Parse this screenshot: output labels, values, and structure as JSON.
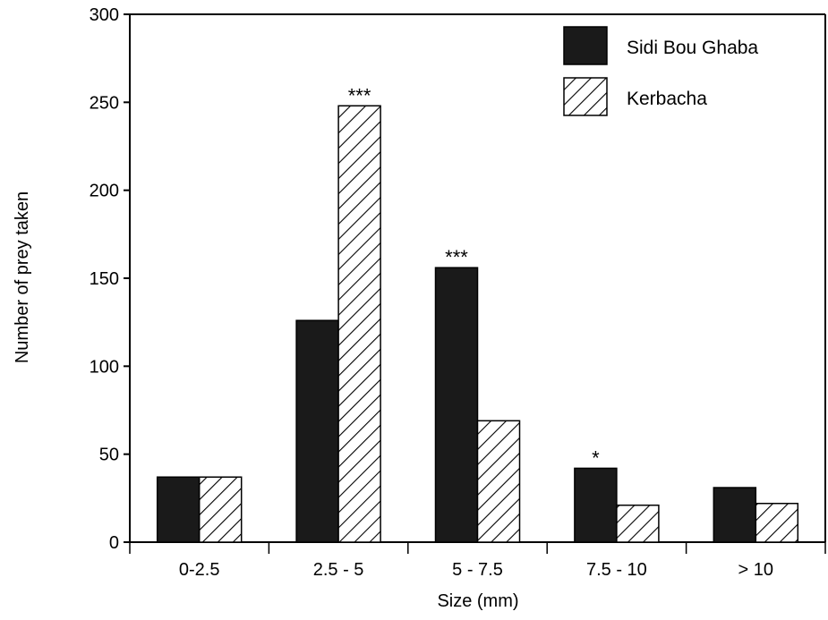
{
  "chart_data": {
    "type": "bar",
    "title": "",
    "xlabel": "Size (mm)",
    "ylabel": "Number of prey taken",
    "ylim": [
      0,
      300
    ],
    "yticks": [
      0,
      50,
      100,
      150,
      200,
      250,
      300
    ],
    "grid": false,
    "legend_position": "top-right",
    "categories": [
      "0-2.5",
      "2.5 - 5",
      "5 - 7.5",
      "7.5 - 10",
      "> 10"
    ],
    "series": [
      {
        "name": "Sidi Bou Ghaba",
        "fill": "solid",
        "color": "#1a1a1a",
        "values": [
          37,
          126,
          156,
          42,
          31
        ],
        "annotations": [
          "",
          "",
          "***",
          "*",
          ""
        ]
      },
      {
        "name": "Kerbacha",
        "fill": "hatched",
        "color": "#ffffff",
        "values": [
          37,
          248,
          69,
          21,
          22
        ],
        "annotations": [
          "",
          "***",
          "",
          "",
          ""
        ]
      }
    ]
  }
}
